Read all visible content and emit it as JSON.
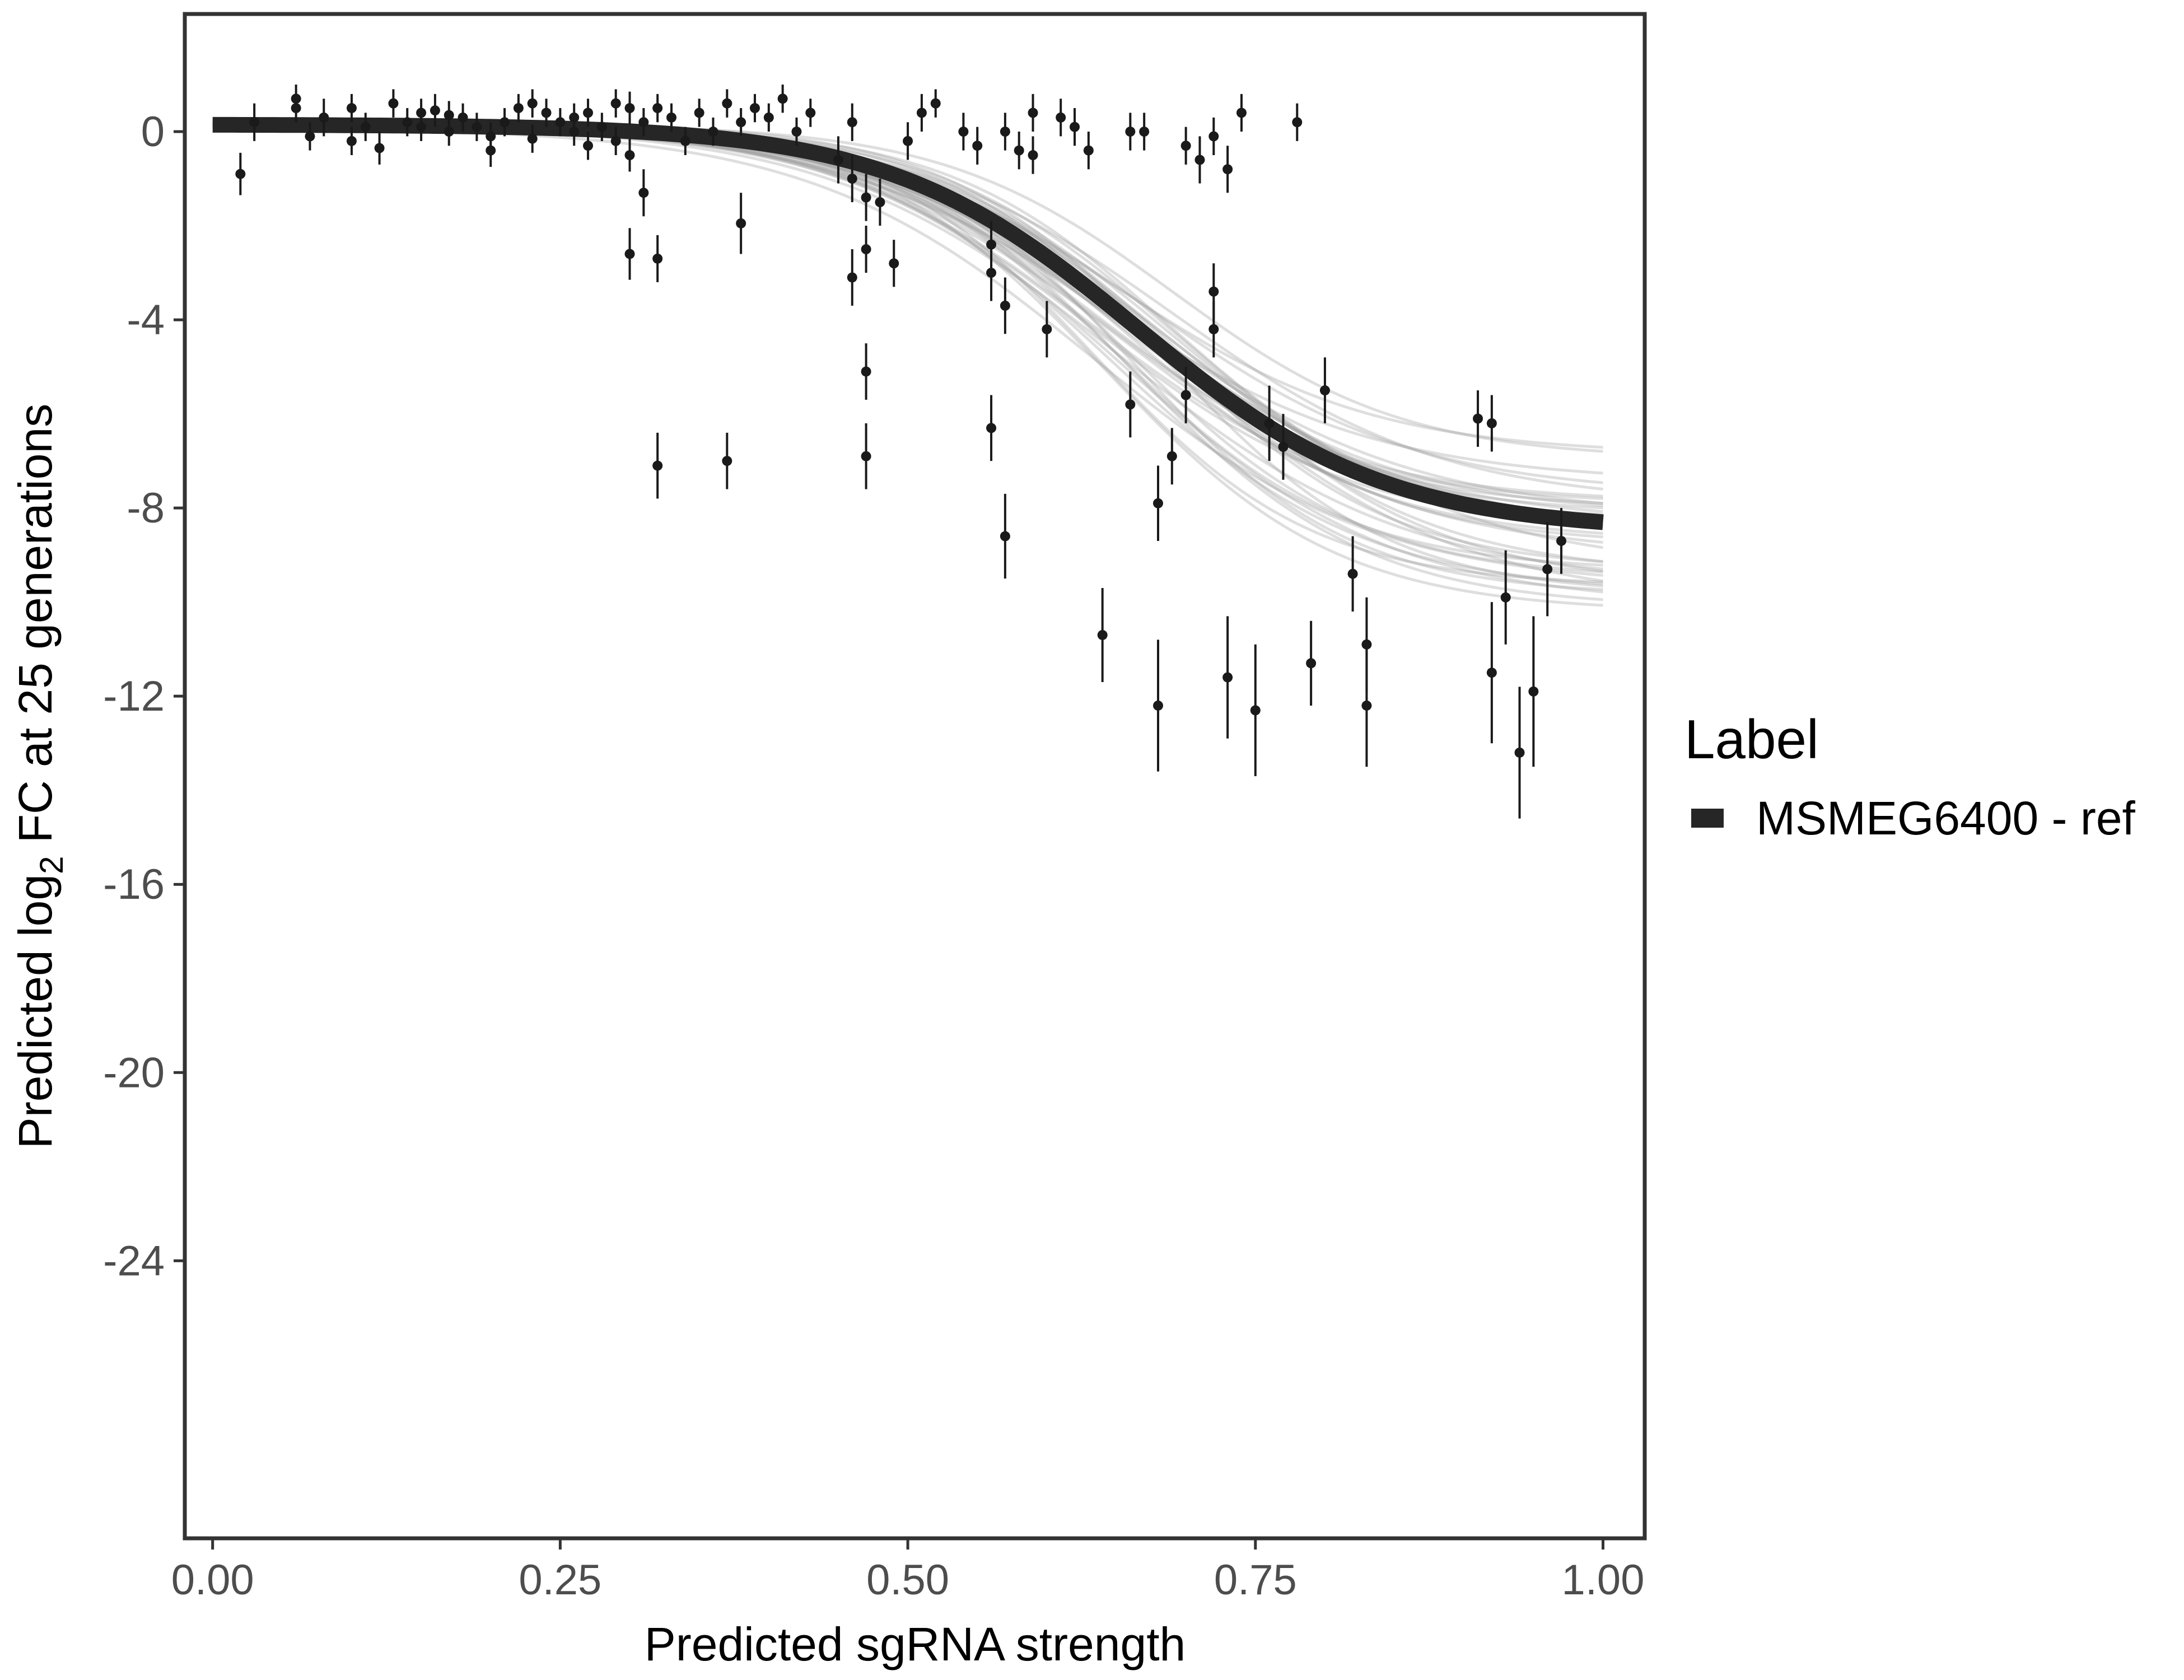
{
  "chart_data": {
    "type": "scatter",
    "title": "",
    "xlabel": "Predicted sgRNA strength",
    "ylabel_parts": {
      "before": "Predicted  log",
      "sub": "2",
      "after": " FC at 25 generations"
    },
    "xlim": [
      -0.02,
      1.03
    ],
    "ylim": [
      -29.9,
      2.5
    ],
    "x_ticks": [
      {
        "value": 0.0,
        "label": "0.00"
      },
      {
        "value": 0.25,
        "label": "0.25"
      },
      {
        "value": 0.5,
        "label": "0.50"
      },
      {
        "value": 0.75,
        "label": "0.75"
      },
      {
        "value": 1.0,
        "label": "1.00"
      }
    ],
    "y_ticks": [
      {
        "value": 0,
        "label": "0"
      },
      {
        "value": -4,
        "label": "-4"
      },
      {
        "value": -8,
        "label": "-8"
      },
      {
        "value": -12,
        "label": "-12"
      },
      {
        "value": -16,
        "label": "-16"
      },
      {
        "value": -20,
        "label": "-20"
      },
      {
        "value": -24,
        "label": "-24"
      }
    ],
    "grid": false,
    "legend": {
      "title": "Label",
      "position": "right",
      "entries": [
        {
          "label": "MSMEG6400 - ref",
          "color": "#262626"
        }
      ]
    },
    "fit_curve": {
      "name": "MSMEG6400 - ref",
      "model": "logistic",
      "upper": 0.15,
      "lower": -8.5,
      "midpoint": 0.665,
      "slope": 11.2,
      "x_range": [
        0.0,
        1.0
      ],
      "color": "#262626"
    },
    "posterior_curves": {
      "count": 40,
      "color": "#a0a0a0"
    },
    "points": [
      {
        "x": 0.02,
        "y": -0.9,
        "err": 0.45
      },
      {
        "x": 0.03,
        "y": 0.2,
        "err": 0.4
      },
      {
        "x": 0.06,
        "y": 0.7,
        "err": 0.3
      },
      {
        "x": 0.06,
        "y": 0.5,
        "err": 0.3
      },
      {
        "x": 0.07,
        "y": -0.1,
        "err": 0.3
      },
      {
        "x": 0.08,
        "y": 0.3,
        "err": 0.4
      },
      {
        "x": 0.1,
        "y": 0.5,
        "err": 0.3
      },
      {
        "x": 0.1,
        "y": -0.2,
        "err": 0.3
      },
      {
        "x": 0.11,
        "y": 0.1,
        "err": 0.3
      },
      {
        "x": 0.12,
        "y": -0.35,
        "err": 0.35
      },
      {
        "x": 0.13,
        "y": 0.6,
        "err": 0.3
      },
      {
        "x": 0.14,
        "y": 0.2,
        "err": 0.3
      },
      {
        "x": 0.15,
        "y": 0.1,
        "err": 0.3
      },
      {
        "x": 0.15,
        "y": 0.4,
        "err": 0.3
      },
      {
        "x": 0.16,
        "y": 0.45,
        "err": 0.35
      },
      {
        "x": 0.17,
        "y": 0.35,
        "err": 0.3
      },
      {
        "x": 0.17,
        "y": 0.0,
        "err": 0.3
      },
      {
        "x": 0.18,
        "y": 0.3,
        "err": 0.3
      },
      {
        "x": 0.19,
        "y": 0.1,
        "err": 0.3
      },
      {
        "x": 0.2,
        "y": -0.4,
        "err": 0.35
      },
      {
        "x": 0.2,
        "y": -0.1,
        "err": 0.3
      },
      {
        "x": 0.21,
        "y": 0.2,
        "err": 0.3
      },
      {
        "x": 0.22,
        "y": 0.5,
        "err": 0.3
      },
      {
        "x": 0.23,
        "y": 0.6,
        "err": 0.3
      },
      {
        "x": 0.23,
        "y": -0.15,
        "err": 0.3
      },
      {
        "x": 0.24,
        "y": 0.4,
        "err": 0.3
      },
      {
        "x": 0.25,
        "y": 0.2,
        "err": 0.3
      },
      {
        "x": 0.26,
        "y": 0.0,
        "err": 0.3
      },
      {
        "x": 0.26,
        "y": 0.3,
        "err": 0.3
      },
      {
        "x": 0.27,
        "y": -0.3,
        "err": 0.3
      },
      {
        "x": 0.27,
        "y": 0.4,
        "err": 0.3
      },
      {
        "x": 0.28,
        "y": 0.1,
        "err": 0.3
      },
      {
        "x": 0.29,
        "y": 0.6,
        "err": 0.3
      },
      {
        "x": 0.29,
        "y": -0.2,
        "err": 0.3
      },
      {
        "x": 0.3,
        "y": 0.5,
        "err": 0.35
      },
      {
        "x": 0.3,
        "y": -0.5,
        "err": 0.35
      },
      {
        "x": 0.31,
        "y": -1.3,
        "err": 0.5
      },
      {
        "x": 0.31,
        "y": 0.2,
        "err": 0.3
      },
      {
        "x": 0.32,
        "y": 0.5,
        "err": 0.3
      },
      {
        "x": 0.33,
        "y": 0.3,
        "err": 0.3
      },
      {
        "x": 0.34,
        "y": -0.2,
        "err": 0.3
      },
      {
        "x": 0.35,
        "y": 0.4,
        "err": 0.3
      },
      {
        "x": 0.36,
        "y": 0.0,
        "err": 0.3
      },
      {
        "x": 0.37,
        "y": 0.6,
        "err": 0.3
      },
      {
        "x": 0.38,
        "y": 0.2,
        "err": 0.3
      },
      {
        "x": 0.39,
        "y": 0.5,
        "err": 0.3
      },
      {
        "x": 0.4,
        "y": 0.3,
        "err": 0.3
      },
      {
        "x": 0.41,
        "y": 0.7,
        "err": 0.3
      },
      {
        "x": 0.42,
        "y": 0.0,
        "err": 0.3
      },
      {
        "x": 0.43,
        "y": 0.4,
        "err": 0.3
      },
      {
        "x": 0.3,
        "y": -2.6,
        "err": 0.55
      },
      {
        "x": 0.32,
        "y": -2.7,
        "err": 0.5
      },
      {
        "x": 0.32,
        "y": -7.1,
        "err": 0.7
      },
      {
        "x": 0.37,
        "y": -7.0,
        "err": 0.6
      },
      {
        "x": 0.38,
        "y": -1.95,
        "err": 0.65
      },
      {
        "x": 0.45,
        "y": -0.6,
        "err": 0.5
      },
      {
        "x": 0.46,
        "y": 0.2,
        "err": 0.4
      },
      {
        "x": 0.46,
        "y": -1.0,
        "err": 0.5
      },
      {
        "x": 0.47,
        "y": -1.4,
        "err": 0.5
      },
      {
        "x": 0.46,
        "y": -3.1,
        "err": 0.6
      },
      {
        "x": 0.47,
        "y": -2.5,
        "err": 0.5
      },
      {
        "x": 0.47,
        "y": -5.1,
        "err": 0.6
      },
      {
        "x": 0.47,
        "y": -6.9,
        "err": 0.7
      },
      {
        "x": 0.48,
        "y": -1.5,
        "err": 0.5
      },
      {
        "x": 0.49,
        "y": -2.8,
        "err": 0.5
      },
      {
        "x": 0.5,
        "y": -0.2,
        "err": 0.4
      },
      {
        "x": 0.51,
        "y": 0.4,
        "err": 0.4
      },
      {
        "x": 0.52,
        "y": 0.6,
        "err": 0.3
      },
      {
        "x": 0.54,
        "y": 0.0,
        "err": 0.4
      },
      {
        "x": 0.55,
        "y": -0.3,
        "err": 0.4
      },
      {
        "x": 0.56,
        "y": -2.4,
        "err": 0.5
      },
      {
        "x": 0.56,
        "y": -3.0,
        "err": 0.6
      },
      {
        "x": 0.56,
        "y": -6.3,
        "err": 0.7
      },
      {
        "x": 0.57,
        "y": -3.7,
        "err": 0.6
      },
      {
        "x": 0.57,
        "y": -8.6,
        "err": 0.9
      },
      {
        "x": 0.57,
        "y": 0.0,
        "err": 0.4
      },
      {
        "x": 0.58,
        "y": -0.4,
        "err": 0.4
      },
      {
        "x": 0.59,
        "y": 0.4,
        "err": 0.4
      },
      {
        "x": 0.59,
        "y": -0.5,
        "err": 0.4
      },
      {
        "x": 0.6,
        "y": -4.2,
        "err": 0.6
      },
      {
        "x": 0.61,
        "y": 0.3,
        "err": 0.4
      },
      {
        "x": 0.62,
        "y": 0.1,
        "err": 0.4
      },
      {
        "x": 0.63,
        "y": -0.4,
        "err": 0.4
      },
      {
        "x": 0.64,
        "y": -10.7,
        "err": 1.0
      },
      {
        "x": 0.66,
        "y": 0.0,
        "err": 0.4
      },
      {
        "x": 0.66,
        "y": -5.8,
        "err": 0.7
      },
      {
        "x": 0.67,
        "y": 0.0,
        "err": 0.4
      },
      {
        "x": 0.68,
        "y": -7.9,
        "err": 0.8
      },
      {
        "x": 0.68,
        "y": -12.2,
        "err": 1.4
      },
      {
        "x": 0.69,
        "y": -6.9,
        "err": 0.6
      },
      {
        "x": 0.7,
        "y": -0.3,
        "err": 0.4
      },
      {
        "x": 0.7,
        "y": -5.6,
        "err": 0.6
      },
      {
        "x": 0.71,
        "y": -0.6,
        "err": 0.5
      },
      {
        "x": 0.72,
        "y": -4.2,
        "err": 0.6
      },
      {
        "x": 0.72,
        "y": -3.4,
        "err": 0.6
      },
      {
        "x": 0.72,
        "y": -0.1,
        "err": 0.4
      },
      {
        "x": 0.73,
        "y": -11.6,
        "err": 1.3
      },
      {
        "x": 0.73,
        "y": -0.8,
        "err": 0.5
      },
      {
        "x": 0.74,
        "y": 0.4,
        "err": 0.4
      },
      {
        "x": 0.75,
        "y": -12.3,
        "err": 1.4
      },
      {
        "x": 0.76,
        "y": -6.2,
        "err": 0.8
      },
      {
        "x": 0.77,
        "y": -6.7,
        "err": 0.7
      },
      {
        "x": 0.78,
        "y": 0.2,
        "err": 0.4
      },
      {
        "x": 0.79,
        "y": -11.3,
        "err": 0.9
      },
      {
        "x": 0.8,
        "y": -5.5,
        "err": 0.7
      },
      {
        "x": 0.82,
        "y": -9.4,
        "err": 0.8
      },
      {
        "x": 0.83,
        "y": -10.9,
        "err": 1.0
      },
      {
        "x": 0.83,
        "y": -12.2,
        "err": 1.3
      },
      {
        "x": 0.91,
        "y": -6.1,
        "err": 0.6
      },
      {
        "x": 0.92,
        "y": -6.2,
        "err": 0.6
      },
      {
        "x": 0.92,
        "y": -11.5,
        "err": 1.5
      },
      {
        "x": 0.93,
        "y": -9.9,
        "err": 1.0
      },
      {
        "x": 0.94,
        "y": -13.2,
        "err": 1.4
      },
      {
        "x": 0.95,
        "y": -11.9,
        "err": 1.6
      },
      {
        "x": 0.96,
        "y": -9.3,
        "err": 1.0
      },
      {
        "x": 0.97,
        "y": -8.7,
        "err": 0.7
      }
    ]
  }
}
